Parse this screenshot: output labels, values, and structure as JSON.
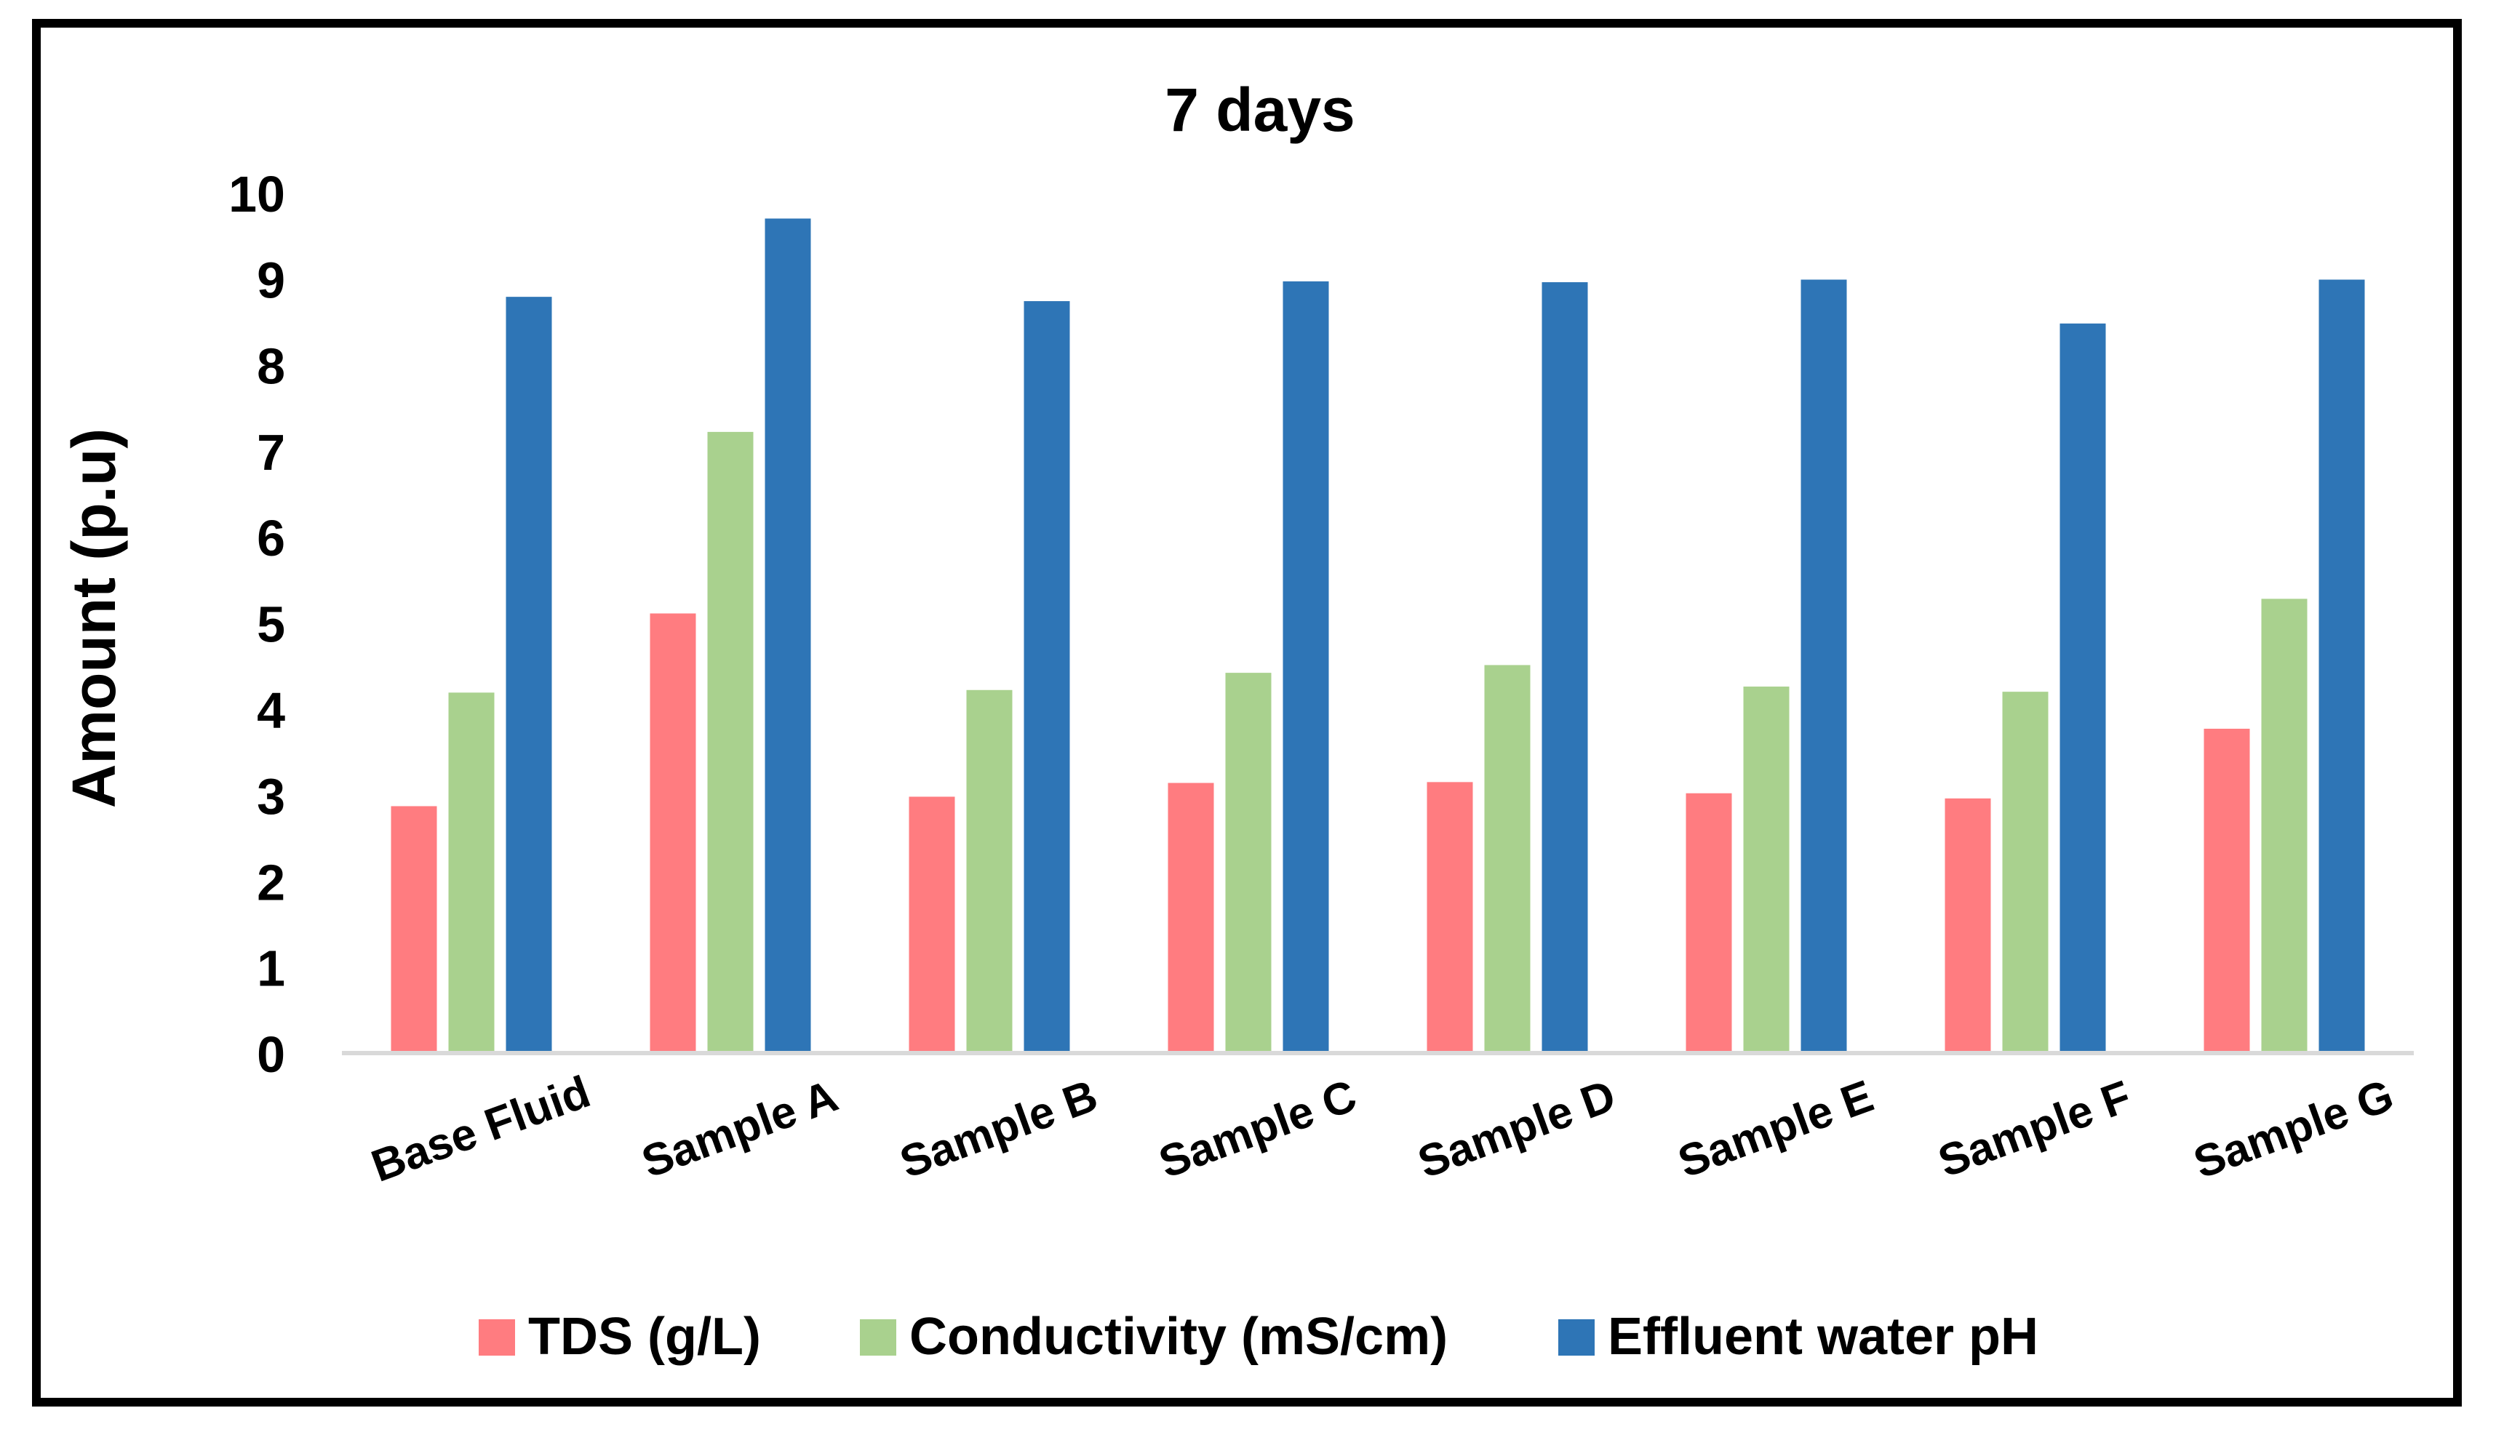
{
  "chart_data": {
    "type": "bar",
    "title": "7 days",
    "xlabel": "",
    "ylabel": "Amount (p.u)",
    "ylim": [
      0,
      10
    ],
    "yticks": [
      "0",
      "1",
      "2",
      "3",
      "4",
      "5",
      "6",
      "7",
      "8",
      "9",
      "10"
    ],
    "categories": [
      "Base Fluid",
      "Sample A",
      "Sample B",
      "Sample C",
      "Sample D",
      "Sample E",
      "Sample F",
      "Sample G"
    ],
    "series": [
      {
        "name": "TDS (g/L)",
        "color": "#FF7C80",
        "values": [
          2.87,
          5.11,
          2.98,
          3.14,
          3.15,
          3.02,
          2.96,
          3.77
        ]
      },
      {
        "name": "Conductivity (mS/cm)",
        "color": "#A9D18E",
        "values": [
          4.19,
          7.22,
          4.22,
          4.42,
          4.51,
          4.26,
          4.2,
          5.28
        ]
      },
      {
        "name": "Effluent water pH",
        "color": "#2E75B6",
        "values": [
          8.79,
          9.7,
          8.74,
          8.97,
          8.96,
          8.99,
          8.48,
          8.99
        ]
      }
    ],
    "grid": false,
    "legend_position": "bottom"
  }
}
